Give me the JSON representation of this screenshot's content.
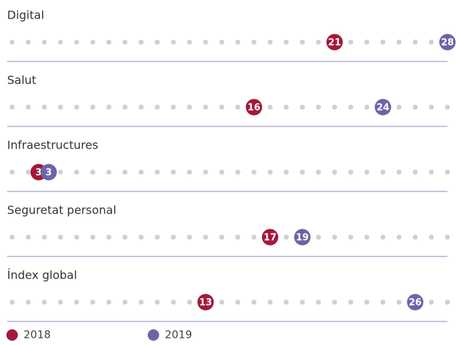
{
  "chart_data": {
    "type": "dot",
    "categories": [
      "Digital",
      "Salut",
      "Infraestructures",
      "Seguretat personal",
      "Índex global"
    ],
    "series": [
      {
        "name": "2018",
        "color": "#a3193b",
        "values": [
          21,
          16,
          3,
          17,
          13
        ]
      },
      {
        "name": "2019",
        "color": "#6c64a8",
        "values": [
          28,
          24,
          3,
          19,
          26
        ]
      }
    ],
    "xlim": [
      1,
      28
    ]
  }
}
